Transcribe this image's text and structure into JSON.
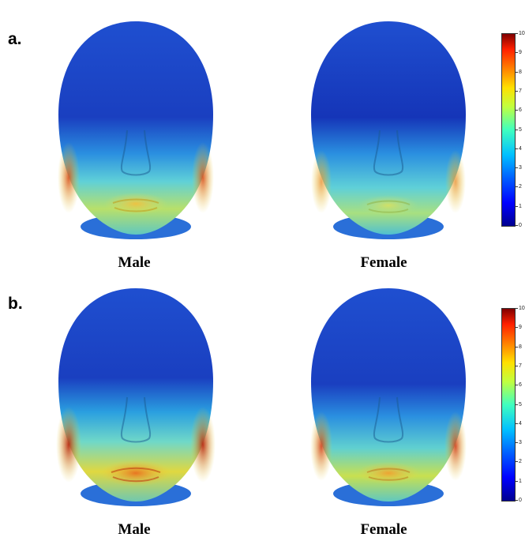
{
  "panels": [
    {
      "label": "a.",
      "faces": [
        {
          "caption": "Male",
          "intensity": 0.75
        },
        {
          "caption": "Female",
          "intensity": 0.55
        }
      ],
      "colorbar": {
        "ticks": [
          "0",
          "1",
          "2",
          "3",
          "4",
          "5",
          "6",
          "7",
          "8",
          "9",
          "10"
        ]
      }
    },
    {
      "label": "b.",
      "faces": [
        {
          "caption": "Male",
          "intensity": 1.0
        },
        {
          "caption": "Female",
          "intensity": 0.75
        }
      ],
      "colorbar": {
        "ticks": [
          "0",
          "1",
          "2",
          "3",
          "4",
          "5",
          "6",
          "7",
          "8",
          "9",
          "10"
        ]
      }
    }
  ],
  "colors": {
    "low": "#1a3fc0",
    "mid": "#3cc0e0",
    "high": "#e8d23a",
    "peak": "#c83a1a"
  }
}
